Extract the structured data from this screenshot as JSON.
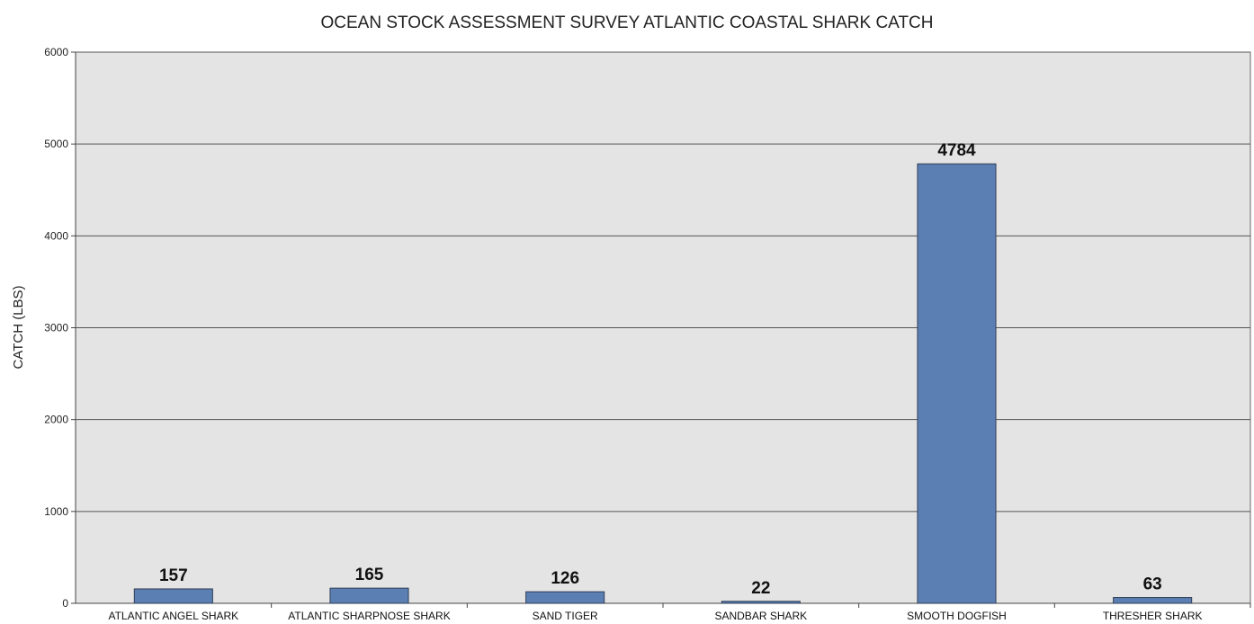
{
  "chart_data": {
    "type": "bar",
    "title": "OCEAN STOCK ASSESSMENT SURVEY ATLANTIC COASTAL SHARK CATCH",
    "xlabel": "",
    "ylabel": "CATCH (LBS)",
    "categories": [
      "ATLANTIC ANGEL SHARK",
      "ATLANTIC SHARPNOSE SHARK",
      "SAND TIGER",
      "SANDBAR SHARK",
      "SMOOTH DOGFISH",
      "THRESHER SHARK"
    ],
    "values": [
      157,
      165,
      126,
      22,
      4784,
      63
    ],
    "data_labels": [
      "157",
      "165",
      "126",
      "22",
      "4784",
      "63"
    ],
    "ylim": [
      0,
      6000
    ],
    "yticks": [
      0,
      1000,
      2000,
      3000,
      4000,
      5000,
      6000
    ],
    "ytick_labels": [
      "0",
      "1000",
      "2000",
      "3000",
      "4000",
      "5000",
      "6000"
    ],
    "grid": true,
    "legend": "none",
    "colors": {
      "bar": "#5b7fb2",
      "plot_background": "#e4e4e4"
    }
  }
}
